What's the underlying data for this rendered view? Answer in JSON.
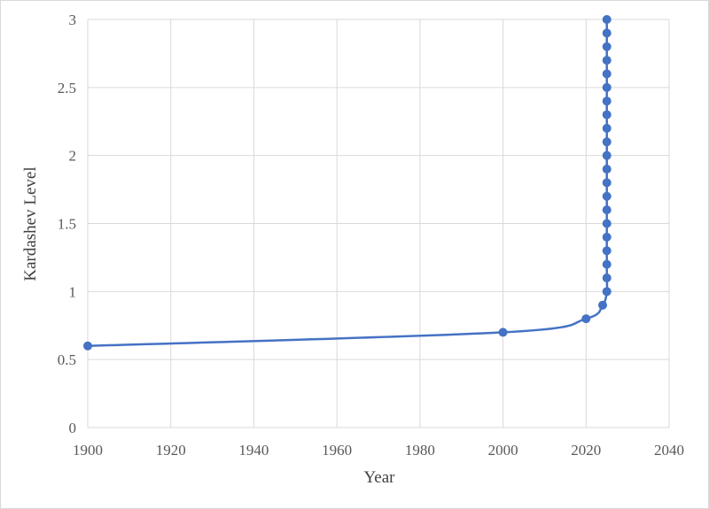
{
  "chart_data": {
    "type": "scatter",
    "title": "",
    "xlabel": "Year",
    "ylabel": "Kardashev Level",
    "xlim": [
      1900,
      2040
    ],
    "ylim": [
      0,
      3
    ],
    "x_ticks": [
      "1900",
      "1920",
      "1940",
      "1960",
      "1980",
      "2000",
      "2020",
      "2040"
    ],
    "y_ticks": [
      "0",
      "0.5",
      "1",
      "1.5",
      "2",
      "2.5",
      "3"
    ],
    "grid": true,
    "legend": "none",
    "line_style": "smoothed line with markers",
    "series_color": "#4472C4",
    "gridline_color": "#d9d9d9",
    "series": [
      {
        "x": [
          1900,
          2000,
          2020,
          2024,
          2025,
          2025,
          2025,
          2025,
          2025,
          2025,
          2025,
          2025,
          2025,
          2025,
          2025,
          2025,
          2025,
          2025,
          2025,
          2025,
          2025,
          2025,
          2025,
          2025,
          2025
        ],
        "y": [
          0.6,
          0.7,
          0.8,
          0.9,
          1.0,
          1.1,
          1.2,
          1.3,
          1.4,
          1.5,
          1.6,
          1.7,
          1.8,
          1.9,
          2.0,
          2.1,
          2.2,
          2.3,
          2.4,
          2.5,
          2.6,
          2.7,
          2.8,
          2.9,
          3.0
        ]
      }
    ]
  }
}
